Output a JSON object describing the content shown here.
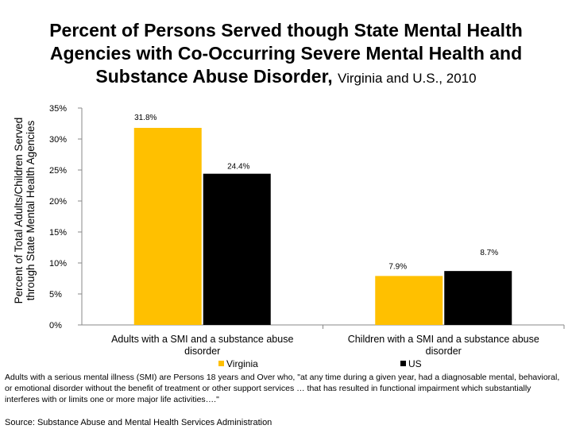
{
  "title_main": "Percent of Persons Served though State Mental Health Agencies with Co-Occurring Severe Mental Health and Substance Abuse Disorder, ",
  "title_sub": "Virginia and U.S., 2010",
  "footnote": "Adults with a serious mental illness (SMI) are Persons 18 years and Over who, \"at any time during a given year, had a diagnosable mental, behavioral, or emotional disorder without the benefit of treatment or other support services … that has resulted in functional impairment which substantially interferes with or limits one or more major life activities….\"",
  "source": "Source: Substance Abuse and Mental Health Services Administration",
  "chart_data": {
    "type": "bar",
    "title": "Percent of Persons Served though State Mental Health Agencies with Co-Occurring Severe Mental Health and Substance Abuse Disorder, Virginia and U.S., 2010",
    "xlabel": "",
    "ylabel": "Percent of Total Adults/Children Served through State Mental Health Agencies",
    "categories": [
      "Adults with a SMI and a substance abuse disorder",
      "Children with a SMI and a substance abuse disorder"
    ],
    "category_lines": [
      [
        "Adults with a SMI and a substance abuse",
        "disorder"
      ],
      [
        "Children with a SMI and a substance abuse",
        "disorder"
      ]
    ],
    "series": [
      {
        "name": "Virginia",
        "values": [
          31.8,
          7.9
        ],
        "labels": [
          "31.8%",
          "7.9%"
        ],
        "color": "#FFC000"
      },
      {
        "name": "US",
        "values": [
          24.4,
          8.7
        ],
        "labels": [
          "24.4%",
          "8.7%"
        ],
        "color": "#000000"
      }
    ],
    "ylim": [
      0,
      35
    ],
    "yticks": [
      0,
      5,
      10,
      15,
      20,
      25,
      30,
      35
    ],
    "ytick_labels": [
      "0%",
      "5%",
      "10%",
      "15%",
      "20%",
      "25%",
      "30%",
      "35%"
    ],
    "grid": false,
    "legend": "bottom"
  }
}
